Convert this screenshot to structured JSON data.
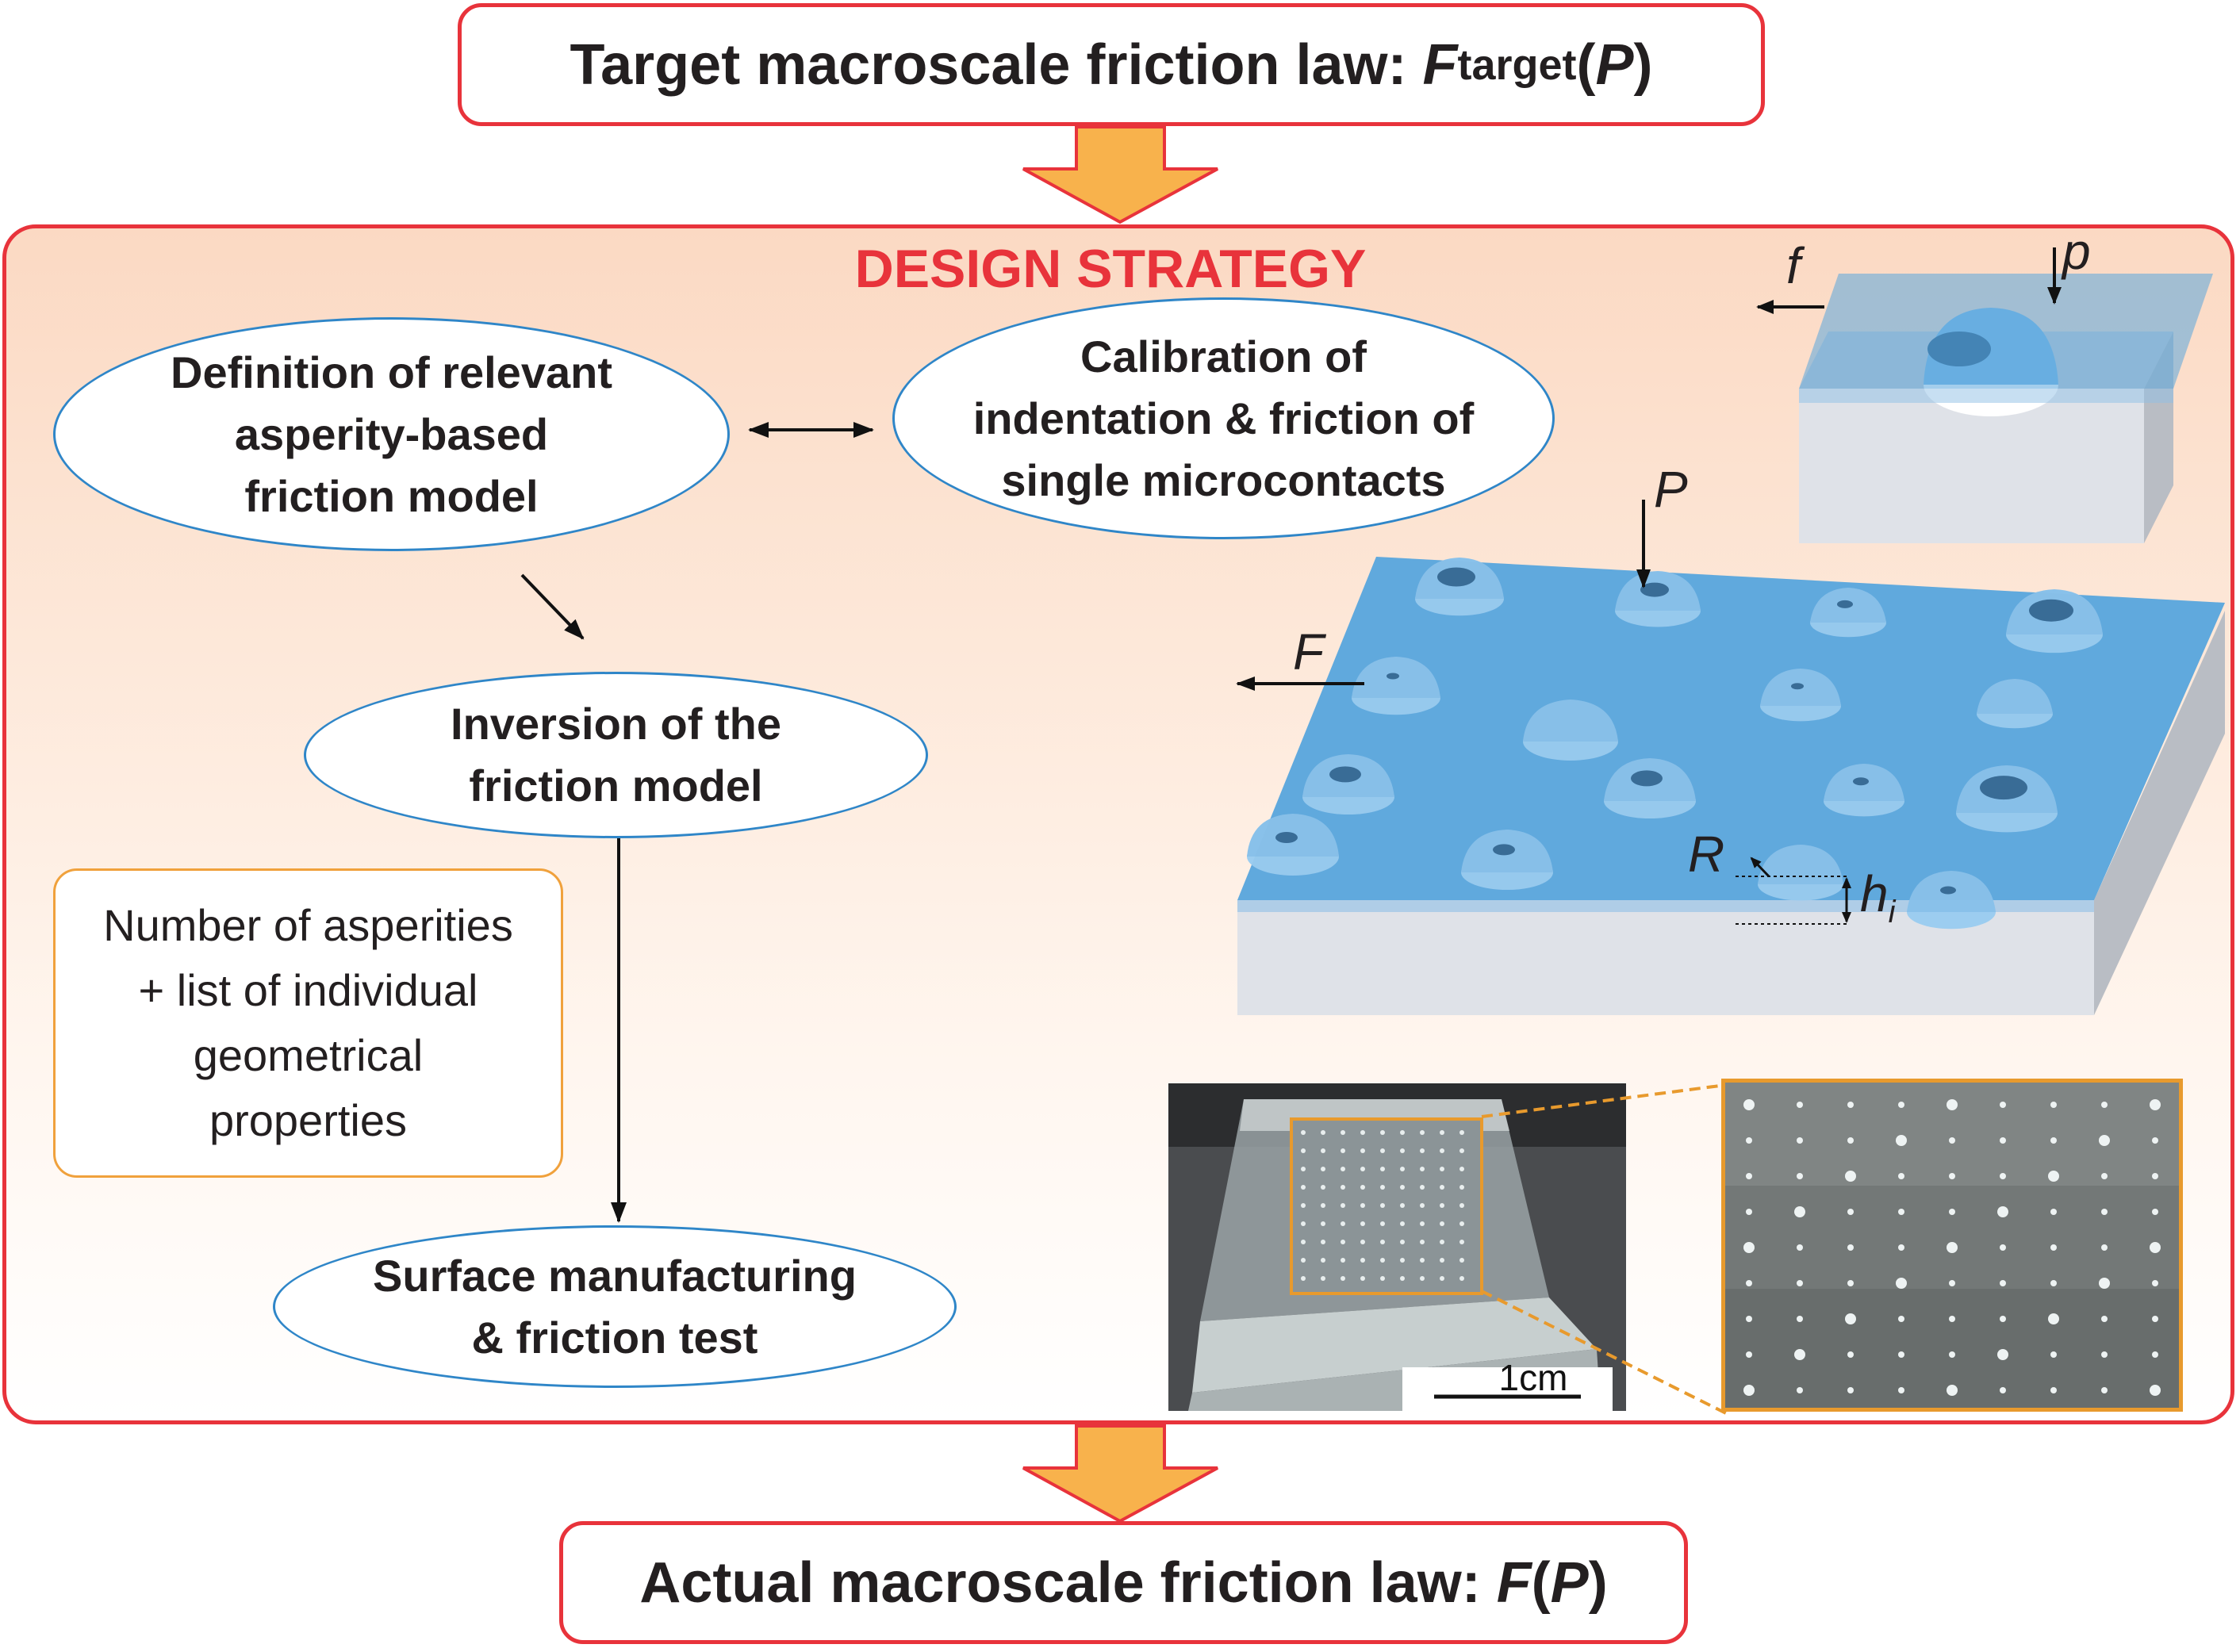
{
  "header": {
    "title_prefix": "Target macroscale friction law: ",
    "func": "F",
    "func_sub": "target",
    "func_arg_open": "(",
    "func_arg": "P",
    "func_arg_close": ")"
  },
  "design": {
    "title": "DESIGN STRATEGY",
    "definition": "Definition of relevant\nasperity-based\nfriction model",
    "calibration": "Calibration of\nindentation & friction of\nsingle microcontacts",
    "inversion": "Inversion of the\nfriction model",
    "manufacturing": "Surface manufacturing\n& friction test",
    "note": "Number of asperities\n+ list of individual\ngeometrical\nproperties"
  },
  "labels": {
    "f": "f",
    "p": "p",
    "P": "P",
    "F": "F",
    "R": "R",
    "h": "h",
    "h_sub": "i",
    "scale": "1cm"
  },
  "footer": {
    "title_prefix": "Actual macroscale friction law: ",
    "func": "F",
    "func_arg_open": "(",
    "func_arg": "P",
    "func_arg_close": ")"
  },
  "colors": {
    "frame_red": "#e8333b",
    "arrow_orange": "#f8b24c",
    "ellipse_blue": "#2f86c8",
    "note_orange": "#f0a13c",
    "surface_blue": "#5aa6dc",
    "substrate_grey": "#dfe2e8"
  }
}
